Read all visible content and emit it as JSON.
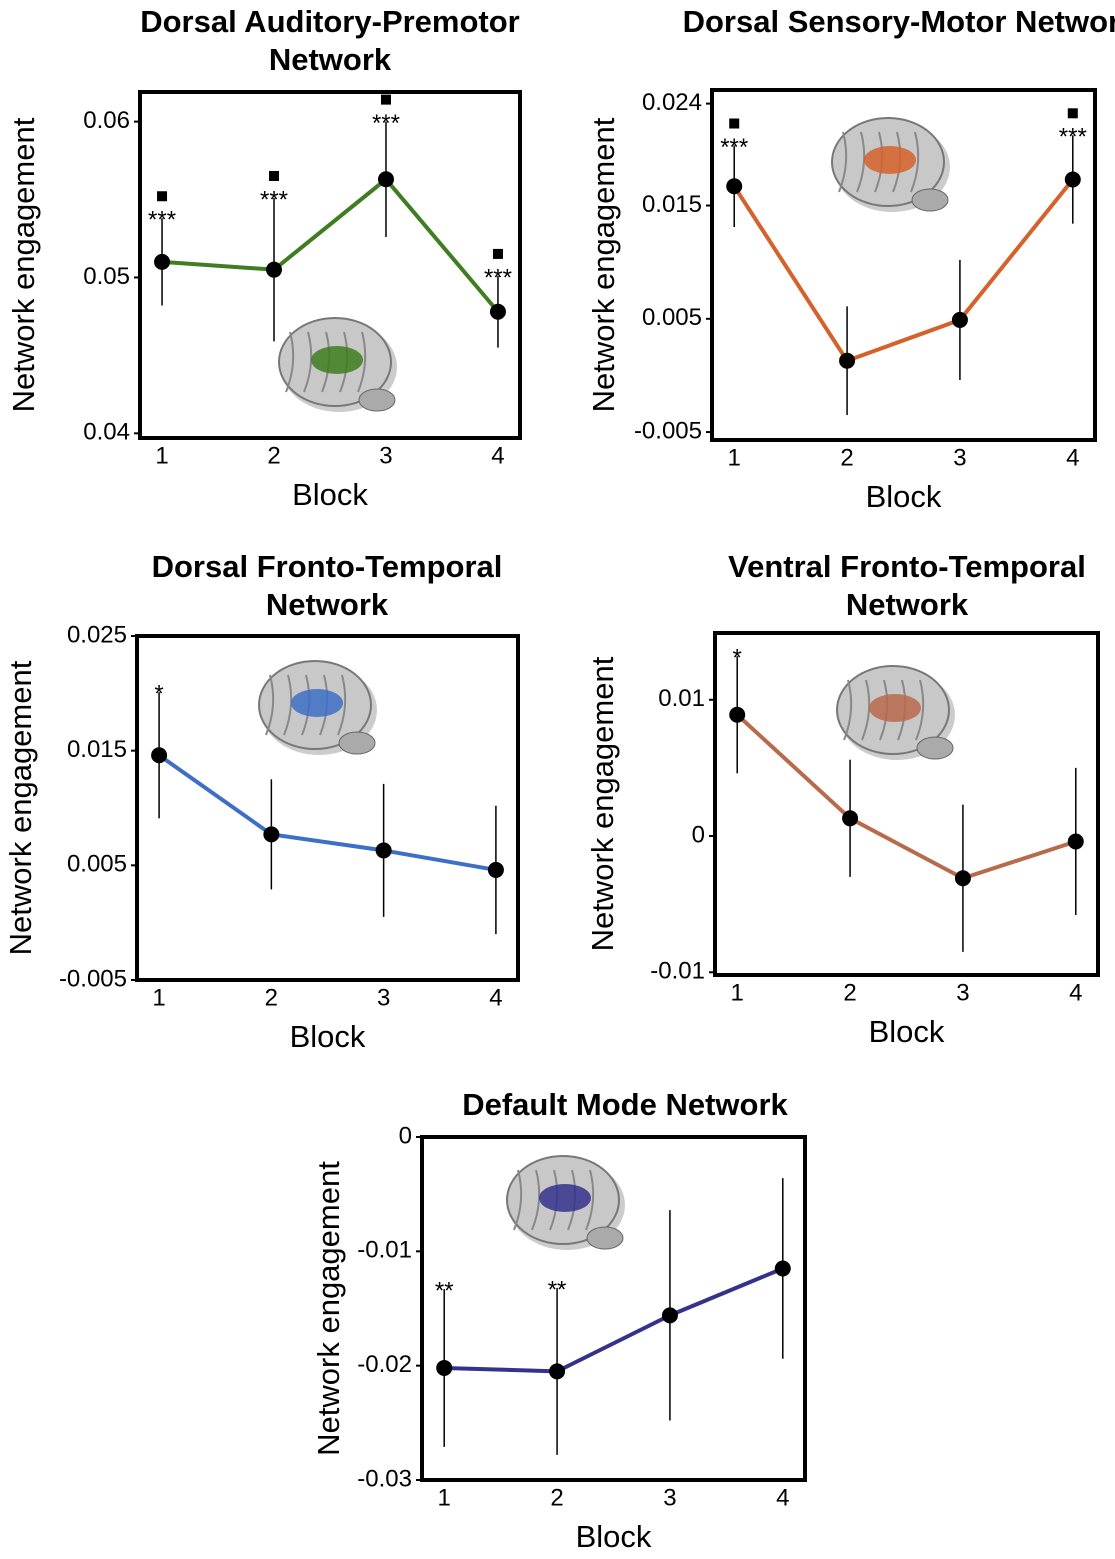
{
  "chart_data": [
    {
      "type": "line",
      "title": "Dorsal Auditory-Premotor Network",
      "x_label": "Block",
      "y_label": "Network engagement",
      "categories": [
        "1",
        "2",
        "3",
        "4"
      ],
      "series": [
        {
          "color": "#3f7d20",
          "values": [
            0.051,
            0.0505,
            0.0563,
            0.0478
          ],
          "errors": [
            0.0028,
            0.0046,
            0.0037,
            0.0023
          ]
        }
      ],
      "annotations": [
        "***",
        "***",
        "***",
        "***"
      ],
      "square_markers": [
        true,
        true,
        true,
        true
      ],
      "ylim": [
        0.0397,
        0.0619
      ],
      "yticks": [
        0.04,
        0.05,
        0.06
      ]
    },
    {
      "type": "line",
      "title": "Dorsal Sensory-Motor Network",
      "x_label": "Block",
      "y_label": "Network engagement",
      "categories": [
        "1",
        "2",
        "3",
        "4"
      ],
      "series": [
        {
          "color": "#d5622a",
          "values": [
            0.0167,
            0.0013,
            0.0049,
            0.0173
          ],
          "errors": [
            0.0036,
            0.0048,
            0.0053,
            0.0039
          ]
        }
      ],
      "annotations": [
        "***",
        null,
        null,
        "***"
      ],
      "square_markers": [
        true,
        false,
        false,
        true
      ],
      "ylim": [
        -0.0057,
        0.0252
      ],
      "yticks": [
        -0.005,
        0.005,
        0.015,
        0.024
      ]
    },
    {
      "type": "line",
      "title": "Dorsal Fronto-Temporal Network",
      "x_label": "Block",
      "y_label": "Network engagement",
      "categories": [
        "1",
        "2",
        "3",
        "4"
      ],
      "series": [
        {
          "color": "#3e6fc7",
          "values": [
            0.0146,
            0.0077,
            0.0063,
            0.0046
          ],
          "errors": [
            0.0055,
            0.0048,
            0.0058,
            0.0056
          ]
        }
      ],
      "annotations": [
        "*",
        null,
        null,
        null
      ],
      "square_markers": [
        false,
        false,
        false,
        false
      ],
      "ylim": [
        -0.005,
        0.025
      ],
      "yticks": [
        -0.005,
        0.005,
        0.015,
        0.025
      ]
    },
    {
      "type": "line",
      "title": "Ventral Fronto-Temporal Network",
      "x_label": "Block",
      "y_label": "Network engagement",
      "categories": [
        "1",
        "2",
        "3",
        "4"
      ],
      "series": [
        {
          "color": "#b86a4c",
          "values": [
            0.0089,
            0.0013,
            -0.0031,
            -0.0004
          ],
          "errors": [
            0.0043,
            0.0043,
            0.0054,
            0.0054
          ]
        }
      ],
      "annotations": [
        "*",
        null,
        null,
        null
      ],
      "square_markers": [
        false,
        false,
        false,
        false
      ],
      "ylim": [
        -0.0102,
        0.0149
      ],
      "yticks": [
        -0.01,
        0,
        0.01
      ]
    },
    {
      "type": "line",
      "title": "Default Mode Network",
      "x_label": "Block",
      "y_label": "Network engagement",
      "categories": [
        "1",
        "2",
        "3",
        "4"
      ],
      "series": [
        {
          "color": "#35328c",
          "values": [
            -0.0202,
            -0.0205,
            -0.0156,
            -0.0115
          ],
          "errors": [
            0.0069,
            0.0073,
            0.0092,
            0.0079
          ]
        }
      ],
      "annotations": [
        "**",
        "**",
        null,
        null
      ],
      "square_markers": [
        false,
        false,
        false,
        false
      ],
      "ylim": [
        -0.03,
        0
      ],
      "yticks": [
        -0.03,
        -0.02,
        -0.01,
        0
      ]
    }
  ]
}
